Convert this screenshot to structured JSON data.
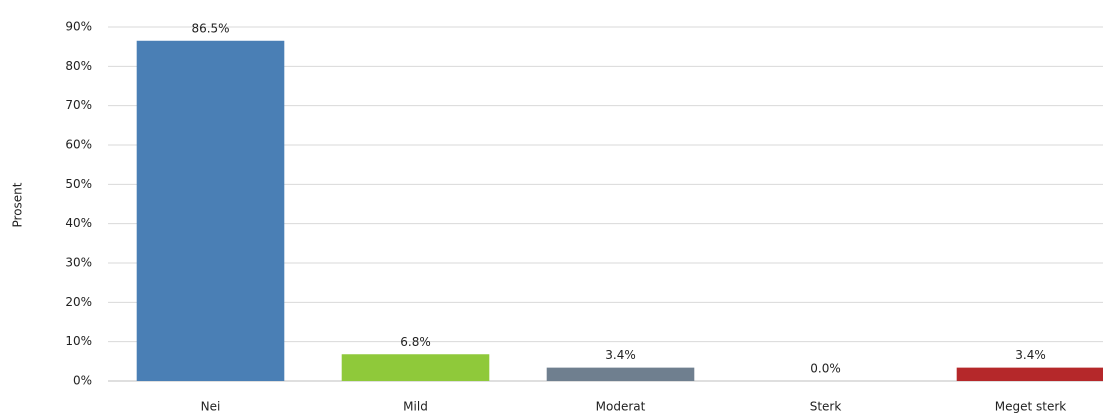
{
  "chart_data": {
    "type": "bar",
    "ylabel": "Prosent",
    "categories": [
      "Nei",
      "Mild",
      "Moderat",
      "Sterk",
      "Meget sterk"
    ],
    "values": [
      86.5,
      6.8,
      3.4,
      0.0,
      3.4
    ],
    "value_labels": [
      "86.5%",
      "6.8%",
      "3.4%",
      "0.0%",
      "3.4%"
    ],
    "colors": [
      "#4a7fb5",
      "#8fc93a",
      "#6f7f8f",
      "#a5a5a5",
      "#b5282a"
    ],
    "ylim": [
      0,
      90
    ],
    "yticks": [
      {
        "value": 0,
        "label": "0%"
      },
      {
        "value": 10,
        "label": "10%"
      },
      {
        "value": 20,
        "label": "20%"
      },
      {
        "value": 30,
        "label": "30%"
      },
      {
        "value": 40,
        "label": "40%"
      },
      {
        "value": 50,
        "label": "50%"
      },
      {
        "value": 60,
        "label": "60%"
      },
      {
        "value": 70,
        "label": "70%"
      },
      {
        "value": 80,
        "label": "80%"
      },
      {
        "value": 90,
        "label": "90%"
      }
    ],
    "grid": true
  }
}
